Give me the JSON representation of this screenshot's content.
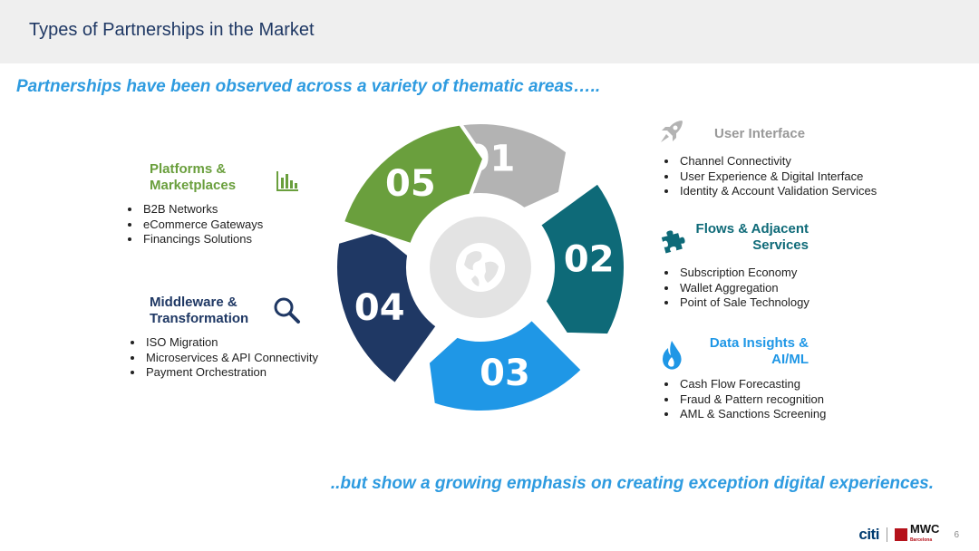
{
  "title": "Types of Partnerships in the Market",
  "subtitle": "Partnerships have been observed across a variety of thematic areas…..",
  "tagline": "..but show a growing emphasis on creating exception digital experiences.",
  "segments": [
    {
      "num": "01",
      "color": "#b3b3b3"
    },
    {
      "num": "02",
      "color": "#0e6a78"
    },
    {
      "num": "03",
      "color": "#1f97e6"
    },
    {
      "num": "04",
      "color": "#1f3864"
    },
    {
      "num": "05",
      "color": "#6a9f3d"
    }
  ],
  "areas": {
    "user_interface": {
      "heading": "User Interface",
      "color": "#999999",
      "items": [
        "Channel Connectivity",
        "User Experience & Digital Interface",
        "Identity & Account Validation Services"
      ]
    },
    "flows": {
      "heading_line1": "Flows & Adjacent",
      "heading_line2": "Services",
      "color": "#0e6a78",
      "items": [
        "Subscription Economy",
        "Wallet Aggregation",
        "Point of Sale Technology"
      ]
    },
    "data_insights": {
      "heading_line1": "Data Insights &",
      "heading_line2": "AI/ML",
      "color": "#1f97e6",
      "items": [
        "Cash Flow Forecasting",
        "Fraud & Pattern recognition",
        "AML & Sanctions Screening"
      ]
    },
    "middleware": {
      "heading_line1": "Middleware &",
      "heading_line2": "Transformation",
      "color": "#1f3864",
      "items": [
        "ISO Migration",
        "Microservices & API Connectivity",
        "Payment Orchestration"
      ]
    },
    "platforms": {
      "heading_line1": "Platforms &",
      "heading_line2": "Marketplaces",
      "color": "#6a9f3d",
      "items": [
        "B2B Networks",
        "eCommerce Gateways",
        "Financings Solutions"
      ]
    }
  },
  "footer": {
    "brand": "citi",
    "event": "MWC",
    "event_sub": "Barcelona",
    "page_number": "6"
  }
}
